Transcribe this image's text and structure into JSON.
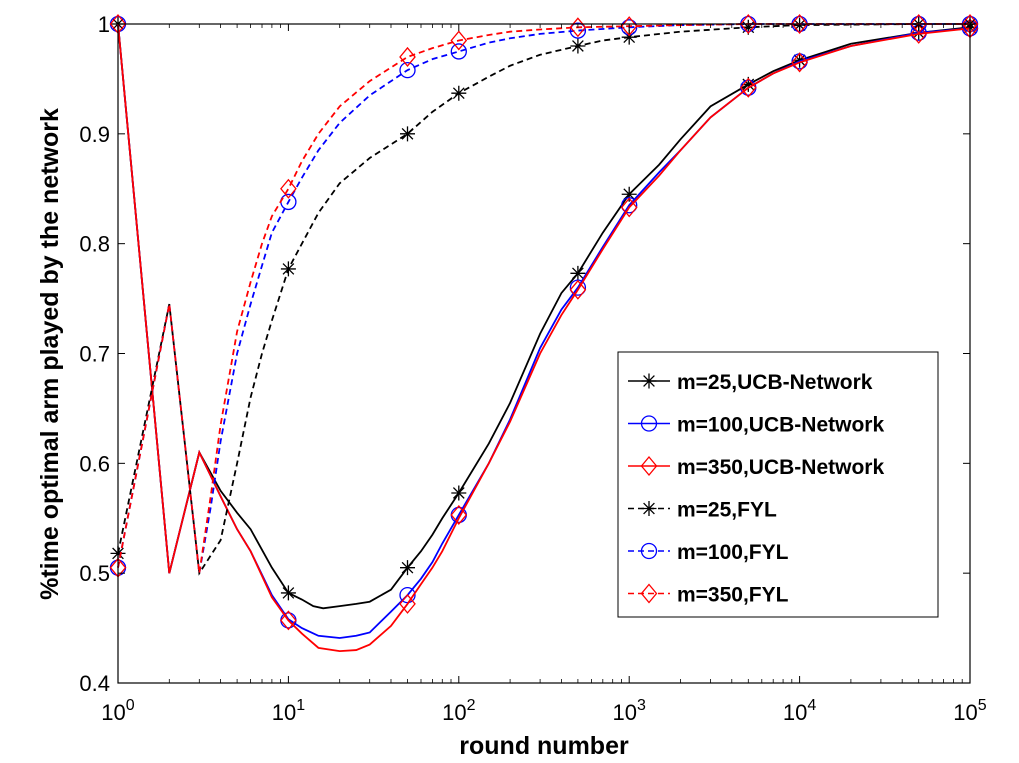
{
  "chart_data": {
    "type": "line",
    "xscale": "log",
    "xlabel": "round number",
    "ylabel": "%time optimal arm played by the network",
    "xlim": [
      1,
      100000
    ],
    "ylim": [
      0.4,
      1.0
    ],
    "grid": false,
    "legend_position": "right",
    "x_ticks": [
      {
        "value": 1,
        "base": "10",
        "exp": "0"
      },
      {
        "value": 10,
        "base": "10",
        "exp": "1"
      },
      {
        "value": 100,
        "base": "10",
        "exp": "2"
      },
      {
        "value": 1000,
        "base": "10",
        "exp": "3"
      },
      {
        "value": 10000,
        "base": "10",
        "exp": "4"
      },
      {
        "value": 100000,
        "base": "10",
        "exp": "5"
      }
    ],
    "y_ticks": [
      {
        "value": 0.4,
        "label": "0.4"
      },
      {
        "value": 0.5,
        "label": "0.5"
      },
      {
        "value": 0.6,
        "label": "0.6"
      },
      {
        "value": 0.7,
        "label": "0.7"
      },
      {
        "value": 0.8,
        "label": "0.8"
      },
      {
        "value": 0.9,
        "label": "0.9"
      },
      {
        "value": 1.0,
        "label": "1"
      }
    ],
    "series": [
      {
        "name": "m=25,UCB-Network",
        "color": "#000000",
        "dashed": false,
        "marker": "star",
        "curve": [
          [
            1,
            1.0
          ],
          [
            2,
            0.5
          ],
          [
            3,
            0.61
          ],
          [
            4,
            0.575
          ],
          [
            5,
            0.555
          ],
          [
            6,
            0.54
          ],
          [
            8,
            0.505
          ],
          [
            10,
            0.482
          ],
          [
            12,
            0.476
          ],
          [
            14,
            0.47
          ],
          [
            16,
            0.468
          ],
          [
            20,
            0.47
          ],
          [
            25,
            0.472
          ],
          [
            30,
            0.474
          ],
          [
            40,
            0.485
          ],
          [
            50,
            0.505
          ],
          [
            60,
            0.52
          ],
          [
            70,
            0.535
          ],
          [
            80,
            0.55
          ],
          [
            100,
            0.573
          ],
          [
            150,
            0.618
          ],
          [
            200,
            0.655
          ],
          [
            300,
            0.718
          ],
          [
            400,
            0.755
          ],
          [
            500,
            0.773
          ],
          [
            700,
            0.81
          ],
          [
            1000,
            0.845
          ],
          [
            1500,
            0.872
          ],
          [
            2000,
            0.895
          ],
          [
            3000,
            0.925
          ],
          [
            5000,
            0.945
          ],
          [
            7000,
            0.957
          ],
          [
            10000,
            0.967
          ],
          [
            20000,
            0.982
          ],
          [
            50000,
            0.992
          ],
          [
            100000,
            0.997
          ]
        ],
        "markers": [
          [
            1,
            1.0
          ],
          [
            10,
            0.482
          ],
          [
            50,
            0.505
          ],
          [
            100,
            0.573
          ],
          [
            500,
            0.773
          ],
          [
            1000,
            0.845
          ],
          [
            5000,
            0.945
          ],
          [
            10000,
            0.967
          ],
          [
            50000,
            0.992
          ],
          [
            100000,
            0.997
          ]
        ]
      },
      {
        "name": "m=100,UCB-Network",
        "color": "#0000ff",
        "dashed": false,
        "marker": "circle",
        "curve": [
          [
            1,
            1.0
          ],
          [
            2,
            0.5
          ],
          [
            3,
            0.61
          ],
          [
            4,
            0.57
          ],
          [
            5,
            0.54
          ],
          [
            6,
            0.52
          ],
          [
            8,
            0.48
          ],
          [
            10,
            0.458
          ],
          [
            12,
            0.45
          ],
          [
            15,
            0.443
          ],
          [
            20,
            0.441
          ],
          [
            25,
            0.443
          ],
          [
            30,
            0.446
          ],
          [
            40,
            0.465
          ],
          [
            50,
            0.48
          ],
          [
            60,
            0.495
          ],
          [
            70,
            0.51
          ],
          [
            80,
            0.527
          ],
          [
            100,
            0.553
          ],
          [
            150,
            0.6
          ],
          [
            200,
            0.64
          ],
          [
            300,
            0.705
          ],
          [
            400,
            0.74
          ],
          [
            500,
            0.76
          ],
          [
            700,
            0.797
          ],
          [
            1000,
            0.835
          ],
          [
            1500,
            0.865
          ],
          [
            2000,
            0.885
          ],
          [
            3000,
            0.915
          ],
          [
            5000,
            0.942
          ],
          [
            7000,
            0.955
          ],
          [
            10000,
            0.966
          ],
          [
            20000,
            0.98
          ],
          [
            50000,
            0.992
          ],
          [
            100000,
            0.996
          ]
        ],
        "markers": [
          [
            1,
            1.0
          ],
          [
            10,
            0.457
          ],
          [
            50,
            0.48
          ],
          [
            100,
            0.553
          ],
          [
            500,
            0.76
          ],
          [
            1000,
            0.835
          ],
          [
            5000,
            0.942
          ],
          [
            10000,
            0.966
          ],
          [
            50000,
            0.992
          ],
          [
            100000,
            0.996
          ]
        ]
      },
      {
        "name": "m=350,UCB-Network",
        "color": "#ff0000",
        "dashed": false,
        "marker": "diamond",
        "curve": [
          [
            1,
            1.0
          ],
          [
            2,
            0.5
          ],
          [
            3,
            0.61
          ],
          [
            4,
            0.57
          ],
          [
            5,
            0.54
          ],
          [
            6,
            0.52
          ],
          [
            8,
            0.478
          ],
          [
            10,
            0.457
          ],
          [
            12,
            0.445
          ],
          [
            15,
            0.432
          ],
          [
            20,
            0.429
          ],
          [
            25,
            0.43
          ],
          [
            30,
            0.435
          ],
          [
            40,
            0.452
          ],
          [
            50,
            0.472
          ],
          [
            60,
            0.49
          ],
          [
            70,
            0.505
          ],
          [
            80,
            0.52
          ],
          [
            100,
            0.55
          ],
          [
            150,
            0.6
          ],
          [
            200,
            0.638
          ],
          [
            300,
            0.7
          ],
          [
            400,
            0.735
          ],
          [
            500,
            0.758
          ],
          [
            700,
            0.795
          ],
          [
            1000,
            0.833
          ],
          [
            1500,
            0.862
          ],
          [
            2000,
            0.885
          ],
          [
            3000,
            0.915
          ],
          [
            5000,
            0.942
          ],
          [
            7000,
            0.955
          ],
          [
            10000,
            0.965
          ],
          [
            20000,
            0.98
          ],
          [
            50000,
            0.991
          ],
          [
            100000,
            0.996
          ]
        ],
        "markers": [
          [
            1,
            1.0
          ],
          [
            10,
            0.457
          ],
          [
            50,
            0.472
          ],
          [
            100,
            0.553
          ],
          [
            500,
            0.758
          ],
          [
            1000,
            0.833
          ],
          [
            5000,
            0.942
          ],
          [
            10000,
            0.965
          ],
          [
            50000,
            0.991
          ],
          [
            100000,
            0.996
          ]
        ]
      },
      {
        "name": "m=25,FYL",
        "color": "#000000",
        "dashed": true,
        "marker": "star",
        "curve": [
          [
            1,
            0.518
          ],
          [
            2,
            0.745
          ],
          [
            3,
            0.5
          ],
          [
            4,
            0.53
          ],
          [
            5,
            0.6
          ],
          [
            6,
            0.66
          ],
          [
            7,
            0.7
          ],
          [
            8,
            0.73
          ],
          [
            10,
            0.777
          ],
          [
            12,
            0.8
          ],
          [
            15,
            0.828
          ],
          [
            20,
            0.855
          ],
          [
            30,
            0.878
          ],
          [
            50,
            0.9
          ],
          [
            70,
            0.92
          ],
          [
            100,
            0.937
          ],
          [
            150,
            0.952
          ],
          [
            200,
            0.962
          ],
          [
            300,
            0.972
          ],
          [
            500,
            0.98
          ],
          [
            700,
            0.985
          ],
          [
            1000,
            0.988
          ],
          [
            2000,
            0.993
          ],
          [
            5000,
            0.997
          ],
          [
            10000,
            0.999
          ],
          [
            50000,
            1.0
          ],
          [
            100000,
            1.0
          ]
        ],
        "markers": [
          [
            1,
            0.518
          ],
          [
            10,
            0.777
          ],
          [
            50,
            0.9
          ],
          [
            100,
            0.937
          ],
          [
            500,
            0.98
          ],
          [
            1000,
            0.988
          ],
          [
            5000,
            0.997
          ],
          [
            10000,
            0.999
          ],
          [
            50000,
            1.0
          ],
          [
            100000,
            1.0
          ]
        ]
      },
      {
        "name": "m=100,FYL",
        "color": "#0000ff",
        "dashed": true,
        "marker": "circle",
        "curve": [
          [
            1,
            0.505
          ],
          [
            2,
            0.745
          ],
          [
            3,
            0.5
          ],
          [
            3.5,
            0.56
          ],
          [
            4,
            0.62
          ],
          [
            5,
            0.7
          ],
          [
            6,
            0.745
          ],
          [
            7,
            0.78
          ],
          [
            8,
            0.81
          ],
          [
            10,
            0.838
          ],
          [
            12,
            0.86
          ],
          [
            15,
            0.885
          ],
          [
            20,
            0.91
          ],
          [
            30,
            0.935
          ],
          [
            50,
            0.958
          ],
          [
            70,
            0.968
          ],
          [
            100,
            0.975
          ],
          [
            150,
            0.983
          ],
          [
            200,
            0.987
          ],
          [
            300,
            0.991
          ],
          [
            500,
            0.994
          ],
          [
            1000,
            0.997
          ],
          [
            2000,
            0.999
          ],
          [
            5000,
            1.0
          ],
          [
            100000,
            1.0
          ]
        ],
        "markers": [
          [
            1,
            0.505
          ],
          [
            10,
            0.838
          ],
          [
            50,
            0.958
          ],
          [
            100,
            0.975
          ],
          [
            500,
            0.994
          ],
          [
            1000,
            0.997
          ],
          [
            5000,
            1.0
          ],
          [
            10000,
            1.0
          ],
          [
            50000,
            1.0
          ],
          [
            100000,
            1.0
          ]
        ]
      },
      {
        "name": "m=350,FYL",
        "color": "#ff0000",
        "dashed": true,
        "marker": "diamond",
        "curve": [
          [
            1,
            0.505
          ],
          [
            2,
            0.745
          ],
          [
            3,
            0.5
          ],
          [
            3.5,
            0.57
          ],
          [
            4,
            0.635
          ],
          [
            5,
            0.72
          ],
          [
            6,
            0.765
          ],
          [
            7,
            0.8
          ],
          [
            8,
            0.825
          ],
          [
            10,
            0.85
          ],
          [
            12,
            0.875
          ],
          [
            15,
            0.9
          ],
          [
            20,
            0.925
          ],
          [
            30,
            0.948
          ],
          [
            50,
            0.97
          ],
          [
            70,
            0.978
          ],
          [
            100,
            0.985
          ],
          [
            150,
            0.99
          ],
          [
            200,
            0.993
          ],
          [
            300,
            0.995
          ],
          [
            500,
            0.997
          ],
          [
            1000,
            0.998
          ],
          [
            2000,
            0.999
          ],
          [
            5000,
            1.0
          ],
          [
            100000,
            1.0
          ]
        ],
        "markers": [
          [
            1,
            0.505
          ],
          [
            10,
            0.85
          ],
          [
            50,
            0.97
          ],
          [
            100,
            0.985
          ],
          [
            500,
            0.997
          ],
          [
            1000,
            0.998
          ],
          [
            5000,
            1.0
          ],
          [
            10000,
            1.0
          ],
          [
            50000,
            1.0
          ],
          [
            100000,
            1.0
          ]
        ]
      }
    ]
  }
}
